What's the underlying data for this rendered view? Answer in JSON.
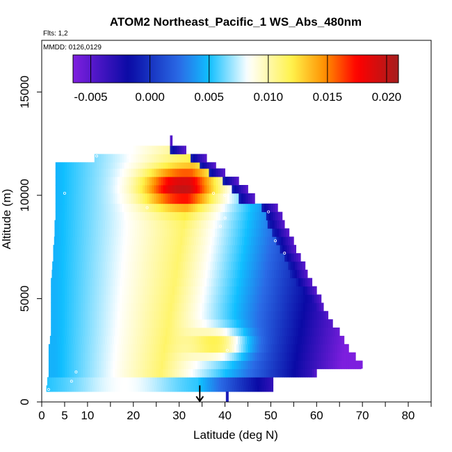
{
  "chart_data": {
    "type": "heatmap",
    "title": "ATOM2 Northeast_Pacific_1 WS_Abs_480nm",
    "flights_label": "Flts: 1,2",
    "dates_label": "MMDD: 0126,0129",
    "xlabel": "Latitude (deg N)",
    "ylabel": "Altitude (m)",
    "xlim": [
      0,
      85
    ],
    "ylim": [
      0,
      17500
    ],
    "x_major_ticks": [
      0,
      5,
      10,
      20,
      30,
      40,
      50,
      60,
      70,
      80
    ],
    "x_minor_ticks": [
      15,
      25,
      35,
      45,
      55,
      65,
      75,
      85
    ],
    "y_ticks": [
      0,
      5000,
      10000,
      15000
    ],
    "colorbar": {
      "min": -0.0065,
      "max": 0.021,
      "ticks": [
        "-0.005",
        "0.000",
        "0.005",
        "0.010",
        "0.015",
        "0.020"
      ],
      "tick_values": [
        -0.005,
        0.0,
        0.005,
        0.01,
        0.015,
        0.02
      ],
      "colors": [
        "#7f1fdf",
        "#0a0aa5",
        "#2a6be6",
        "#10bfff",
        "#ffffff",
        "#fff24a",
        "#ff8f00",
        "#ff0000",
        "#a51e1e"
      ]
    },
    "field_description": "altitude-latitude cross-section of interpolated absorption",
    "altitude_bands": [
      {
        "alt": [
          500,
          800
        ],
        "lat": [
          1,
          50.5
        ]
      },
      {
        "alt": [
          800,
          1200
        ],
        "lat": [
          1.2,
          50.5
        ]
      },
      {
        "alt": [
          1200,
          1600
        ],
        "lat": [
          1.5,
          60
        ]
      },
      {
        "alt": [
          1600,
          2000
        ],
        "lat": [
          1.5,
          70
        ]
      },
      {
        "alt": [
          2000,
          2400
        ],
        "lat": [
          1.5,
          68.5
        ]
      },
      {
        "alt": [
          2400,
          2800
        ],
        "lat": [
          1.5,
          67
        ]
      },
      {
        "alt": [
          2800,
          3200
        ],
        "lat": [
          1.8,
          66
        ]
      },
      {
        "alt": [
          3200,
          3600
        ],
        "lat": [
          2,
          65
        ]
      },
      {
        "alt": [
          3600,
          4000
        ],
        "lat": [
          2,
          63.5
        ]
      },
      {
        "alt": [
          4000,
          4400
        ],
        "lat": [
          2,
          62.5
        ]
      },
      {
        "alt": [
          4400,
          4800
        ],
        "lat": [
          2,
          61.5
        ]
      },
      {
        "alt": [
          4800,
          5200
        ],
        "lat": [
          2,
          61
        ]
      },
      {
        "alt": [
          5200,
          5600
        ],
        "lat": [
          2,
          60
        ]
      },
      {
        "alt": [
          5600,
          6000
        ],
        "lat": [
          2,
          59
        ]
      },
      {
        "alt": [
          6000,
          6400
        ],
        "lat": [
          2.2,
          58
        ]
      },
      {
        "alt": [
          6400,
          6800
        ],
        "lat": [
          2.3,
          57.5
        ]
      },
      {
        "alt": [
          6800,
          7200
        ],
        "lat": [
          2.5,
          56.5
        ]
      },
      {
        "alt": [
          7200,
          7600
        ],
        "lat": [
          2.5,
          55.5
        ]
      },
      {
        "alt": [
          7600,
          8000
        ],
        "lat": [
          2.7,
          55
        ]
      },
      {
        "alt": [
          8000,
          8400
        ],
        "lat": [
          2.8,
          54
        ]
      },
      {
        "alt": [
          8400,
          8800
        ],
        "lat": [
          2.8,
          53
        ]
      },
      {
        "alt": [
          8800,
          9200
        ],
        "lat": [
          3,
          52.5
        ]
      },
      {
        "alt": [
          9200,
          9600
        ],
        "lat": [
          3,
          51.5
        ]
      },
      {
        "alt": [
          9600,
          10100
        ],
        "lat": [
          3,
          46.5
        ]
      },
      {
        "alt": [
          10100,
          10500
        ],
        "lat": [
          3,
          45
        ]
      },
      {
        "alt": [
          10500,
          10900
        ],
        "lat": [
          3,
          43
        ]
      },
      {
        "alt": [
          10900,
          11300
        ],
        "lat": [
          3,
          40
        ]
      },
      {
        "alt": [
          11300,
          11600
        ],
        "lat": [
          3,
          38
        ]
      },
      {
        "alt": [
          11600,
          12000
        ],
        "lat": [
          11.5,
          36
        ]
      },
      {
        "alt": [
          12000,
          12400
        ],
        "lat": [
          20,
          31.5
        ]
      },
      {
        "alt": [
          12400,
          12900
        ],
        "lat": [
          28,
          28.5
        ]
      }
    ],
    "sample_points": [
      {
        "lat": 1.5,
        "alt": 600
      },
      {
        "lat": 6.5,
        "alt": 1000
      },
      {
        "lat": 7.5,
        "alt": 1450
      },
      {
        "lat": 40.5,
        "alt": 2500
      },
      {
        "lat": 70,
        "alt": 1550
      },
      {
        "lat": 40,
        "alt": 8900
      },
      {
        "lat": 39,
        "alt": 8500
      },
      {
        "lat": 51,
        "alt": 7800
      },
      {
        "lat": 53,
        "alt": 7200
      },
      {
        "lat": 49.5,
        "alt": 9200
      },
      {
        "lat": 23,
        "alt": 9400
      },
      {
        "lat": 5,
        "alt": 10100
      },
      {
        "lat": 37.5,
        "alt": 10100
      },
      {
        "lat": 40,
        "alt": 10000
      },
      {
        "lat": 1.5,
        "alt": 11300
      },
      {
        "lat": 12,
        "alt": 11900
      },
      {
        "lat": 19,
        "alt": 11850
      }
    ],
    "annotations": [
      {
        "type": "arrow",
        "lat": 34.5,
        "alt_from": 800,
        "alt_to": 0
      },
      {
        "type": "marker",
        "lat": 40.5,
        "alt_from": 0,
        "alt_to": 500,
        "color": "#1a1ab8"
      }
    ]
  }
}
